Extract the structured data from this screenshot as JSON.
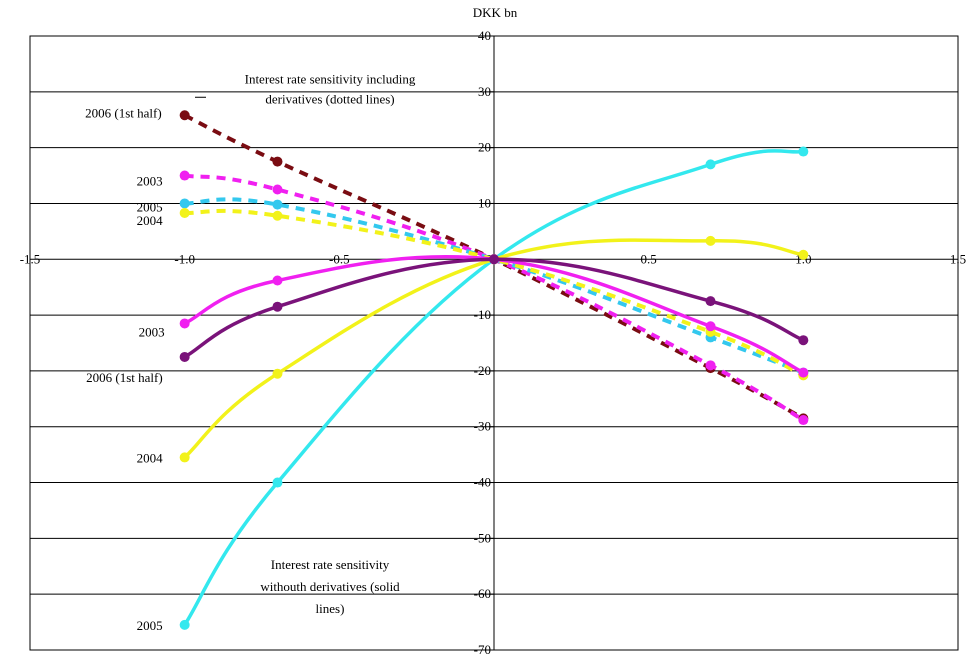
{
  "chart_data": {
    "type": "line",
    "title": "",
    "ylabel": "DKK bn",
    "xlim": [
      -1.5,
      1.5
    ],
    "ylim": [
      -70,
      40
    ],
    "x_ticks": [
      -1.5,
      -1.0,
      -0.5,
      0.0,
      0.5,
      1.0,
      1.5
    ],
    "x_tick_labels": [
      "-1.5",
      "-1.0",
      "-0.5",
      "0.0",
      "0.5",
      "1.0",
      "1.5"
    ],
    "y_ticks": [
      40,
      30,
      20,
      10,
      0,
      -10,
      -20,
      -30,
      -40,
      -50,
      -60,
      -70
    ],
    "y_tick_labels": [
      "40",
      "30",
      "20",
      "10",
      "0",
      "-10",
      "-20",
      "-30",
      "-40",
      "-50",
      "-60",
      "-70"
    ],
    "gridlines": "horizontal",
    "x": [
      -1.0,
      -0.7,
      0.0,
      0.7,
      1.0
    ],
    "series": [
      {
        "name": "2005",
        "style": "solid",
        "color": "#33e8ee",
        "values": [
          -65.5,
          -40.0,
          0.0,
          17.0,
          19.3
        ]
      },
      {
        "name": "2004",
        "style": "solid",
        "color": "#f2f21a",
        "values": [
          -35.5,
          -20.5,
          0.0,
          3.3,
          0.8
        ]
      },
      {
        "name": "2003",
        "style": "solid",
        "color": "#f020f0",
        "values": [
          -11.5,
          -3.8,
          0.0,
          -12.0,
          -20.3
        ]
      },
      {
        "name": "2006 (1st half)",
        "style": "solid",
        "color": "#7a137a",
        "values": [
          -17.5,
          -8.5,
          0.0,
          -7.5,
          -14.5
        ]
      },
      {
        "name": "2006 (1st half)",
        "style": "dotted",
        "color": "#7a0c12",
        "values": [
          25.8,
          17.5,
          0.0,
          -19.5,
          -28.5
        ]
      },
      {
        "name": "2003",
        "style": "dotted",
        "color": "#f020f0",
        "values": [
          15.0,
          12.5,
          0.0,
          -19.0,
          -28.8
        ]
      },
      {
        "name": "2005",
        "style": "dotted",
        "color": "#33c8ee",
        "values": [
          10.0,
          9.8,
          0.0,
          -14.0,
          -20.3
        ]
      },
      {
        "name": "2004",
        "style": "dotted",
        "color": "#f2f21a",
        "values": [
          8.3,
          7.8,
          0.0,
          -13.0,
          -20.8
        ]
      }
    ],
    "annotations": [
      {
        "text": "Interest rate sensitivity including derivatives (dotted lines)",
        "lines": [
          "Interest rate sensitivity including",
          "derivatives (dotted lines)"
        ]
      },
      {
        "text": "Interest rate sensitivity withouth derivatives (solid lines)",
        "lines": [
          "Interest rate sensitivity",
          "withouth derivatives (solid",
          "lines)"
        ]
      }
    ],
    "series_labels": [
      {
        "text": "2006 (1st half)",
        "side": "left",
        "target": 25.8
      },
      {
        "text": "2003",
        "side": "left",
        "target": 15.0
      },
      {
        "text": "2005",
        "side": "left",
        "target": 10.0
      },
      {
        "text": "2004",
        "side": "left",
        "target": 8.3
      },
      {
        "text": "2003",
        "side": "left",
        "target": -11.5
      },
      {
        "text": "2006 (1st half)",
        "side": "left",
        "target": -17.5
      },
      {
        "text": "2004",
        "side": "left",
        "target": -35.5
      },
      {
        "text": "2005",
        "side": "left",
        "target": -65.5
      }
    ]
  }
}
